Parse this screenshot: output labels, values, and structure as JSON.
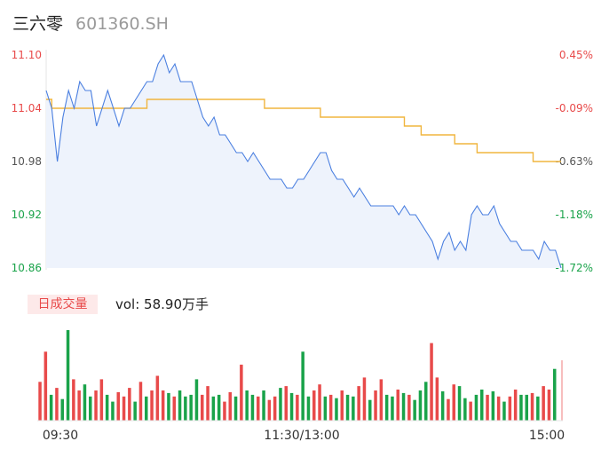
{
  "header": {
    "stock_name": "三六零",
    "stock_code": "601360.SH"
  },
  "volume_panel": {
    "tab_label": "日成交量",
    "vol_prefix": "vol: ",
    "vol_value": "58.90万手"
  },
  "colors": {
    "price_line": "#4a7fe0",
    "avg_line": "#f0b53e",
    "up": "#e84a4a",
    "down": "#1aa34a",
    "fill": "#eef3fc"
  },
  "chart_data": {
    "type": "line",
    "title": "",
    "y_ticks_left": [
      "11.10",
      "11.04",
      "10.98",
      "10.92",
      "10.86"
    ],
    "y_ticks_right": [
      "0.45%",
      "-0.09%",
      "-0.63%",
      "-1.18%",
      "-1.72%"
    ],
    "x_ticks": [
      "09:30",
      "11:30/13:00",
      "15:00"
    ],
    "ylim": [
      10.86,
      11.1
    ],
    "series": [
      {
        "key": "price",
        "values": [
          11.06,
          11.04,
          10.98,
          11.03,
          11.06,
          11.04,
          11.07,
          11.06,
          11.06,
          11.02,
          11.04,
          11.06,
          11.04,
          11.02,
          11.04,
          11.04,
          11.05,
          11.06,
          11.07,
          11.07,
          11.09,
          11.1,
          11.08,
          11.09,
          11.07,
          11.07,
          11.07,
          11.05,
          11.03,
          11.02,
          11.03,
          11.01,
          11.01,
          11.0,
          10.99,
          10.99,
          10.98,
          10.99,
          10.98,
          10.97,
          10.96,
          10.96,
          10.96,
          10.95,
          10.95,
          10.96,
          10.96,
          10.97,
          10.98,
          10.99,
          10.99,
          10.97,
          10.96,
          10.96,
          10.95,
          10.94,
          10.95,
          10.94,
          10.93,
          10.93,
          10.93,
          10.93,
          10.93,
          10.92,
          10.93,
          10.92,
          10.92,
          10.91,
          10.9,
          10.89,
          10.87,
          10.89,
          10.9,
          10.88,
          10.89,
          10.88,
          10.92,
          10.93,
          10.92,
          10.92,
          10.93,
          10.91,
          10.9,
          10.89,
          10.89,
          10.88,
          10.88,
          10.88,
          10.87,
          10.89,
          10.88,
          10.88,
          10.86
        ]
      },
      {
        "key": "average",
        "values": [
          11.05,
          11.04,
          11.04,
          11.04,
          11.04,
          11.04,
          11.04,
          11.04,
          11.04,
          11.04,
          11.04,
          11.04,
          11.04,
          11.04,
          11.04,
          11.04,
          11.04,
          11.04,
          11.05,
          11.05,
          11.05,
          11.05,
          11.05,
          11.05,
          11.05,
          11.05,
          11.05,
          11.05,
          11.05,
          11.05,
          11.05,
          11.05,
          11.05,
          11.05,
          11.05,
          11.05,
          11.05,
          11.05,
          11.05,
          11.04,
          11.04,
          11.04,
          11.04,
          11.04,
          11.04,
          11.04,
          11.04,
          11.04,
          11.04,
          11.03,
          11.03,
          11.03,
          11.03,
          11.03,
          11.03,
          11.03,
          11.03,
          11.03,
          11.03,
          11.03,
          11.03,
          11.03,
          11.03,
          11.03,
          11.02,
          11.02,
          11.02,
          11.01,
          11.01,
          11.01,
          11.01,
          11.01,
          11.01,
          11.0,
          11.0,
          11.0,
          11.0,
          10.99,
          10.99,
          10.99,
          10.99,
          10.99,
          10.99,
          10.99,
          10.99,
          10.99,
          10.99,
          10.98,
          10.98,
          10.98,
          10.98,
          10.98,
          10.98
        ]
      }
    ],
    "volume": {
      "up": [
        1,
        1,
        0,
        1,
        0,
        0,
        1,
        1,
        0,
        0,
        1,
        1,
        0,
        0,
        1,
        1,
        1,
        0,
        1,
        0,
        1,
        1,
        1,
        0,
        1,
        0,
        0,
        0,
        0,
        1,
        1,
        0,
        0,
        1,
        1,
        0,
        1,
        0,
        0,
        1,
        0,
        1,
        1,
        0,
        1,
        0,
        1,
        0,
        0,
        1,
        1,
        0,
        1,
        0,
        1,
        0,
        0,
        1,
        1,
        0,
        1,
        1,
        0,
        0,
        1,
        0,
        1,
        0,
        0,
        0,
        1,
        1,
        0,
        1,
        1,
        0,
        0,
        1,
        0,
        0,
        1,
        0,
        1,
        0,
        1,
        1,
        0,
        0,
        1,
        0,
        1,
        1,
        0
      ],
      "values": [
        45,
        80,
        30,
        38,
        25,
        105,
        48,
        35,
        42,
        28,
        35,
        48,
        30,
        22,
        33,
        28,
        38,
        22,
        45,
        28,
        35,
        52,
        35,
        32,
        28,
        35,
        28,
        30,
        48,
        30,
        40,
        28,
        30,
        22,
        33,
        28,
        65,
        35,
        30,
        28,
        35,
        24,
        28,
        38,
        40,
        32,
        30,
        80,
        28,
        35,
        42,
        28,
        30,
        26,
        35,
        30,
        28,
        40,
        50,
        24,
        35,
        48,
        30,
        28,
        36,
        32,
        30,
        24,
        35,
        45,
        90,
        50,
        34,
        25,
        42,
        40,
        26,
        22,
        30,
        36,
        30,
        34,
        28,
        22,
        28,
        36,
        30,
        30,
        32,
        28,
        40,
        36,
        60
      ]
    }
  }
}
